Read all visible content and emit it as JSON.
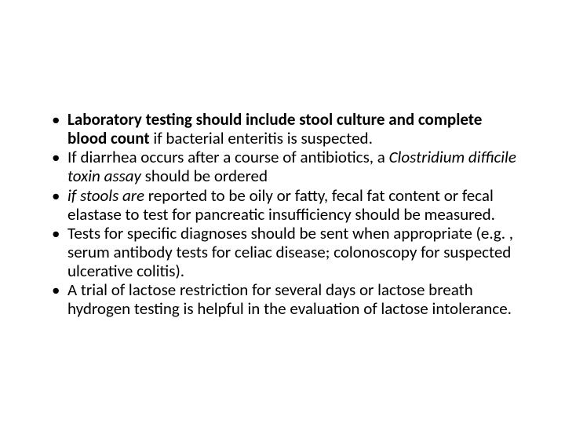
{
  "slide": {
    "background_color": "#ffffff",
    "text_color": "#000000",
    "font_family": "Calibri",
    "body_fontsize_pt": 21,
    "line_height": 1.15,
    "bullets": [
      {
        "runs": [
          {
            "t": "Laboratory testing should include stool culture and complete blood count",
            "b": true,
            "i": false
          },
          {
            "t": " if bacterial enteritis is suspected.",
            "b": false,
            "i": false
          }
        ]
      },
      {
        "runs": [
          {
            "t": "If diarrhea occurs after a course of antibiotics, a ",
            "b": false,
            "i": false
          },
          {
            "t": "Clostridium difficile toxin assay ",
            "b": false,
            "i": true
          },
          {
            "t": "should be ordered",
            "b": false,
            "i": false
          }
        ]
      },
      {
        "runs": [
          {
            "t": " ",
            "b": false,
            "i": false
          },
          {
            "t": "if stools are ",
            "b": false,
            "i": true
          },
          {
            "t": "reported to be oily or fatty, fecal fat content or fecal elastase to test for pancreatic insufficiency should be measured.",
            "b": false,
            "i": false
          }
        ]
      },
      {
        "runs": [
          {
            "t": "Tests for specific diagnoses  should be sent when appropriate (e.g. , serum antibody tests for celiac disease; colonoscopy for suspected ulcerative colitis).",
            "b": false,
            "i": false
          }
        ]
      },
      {
        "runs": [
          {
            "t": "A trial of lactose restriction for several days or lactose breath hydrogen testing is helpful in the evaluation of lactose intolerance.",
            "b": false,
            "i": false
          }
        ]
      }
    ]
  }
}
